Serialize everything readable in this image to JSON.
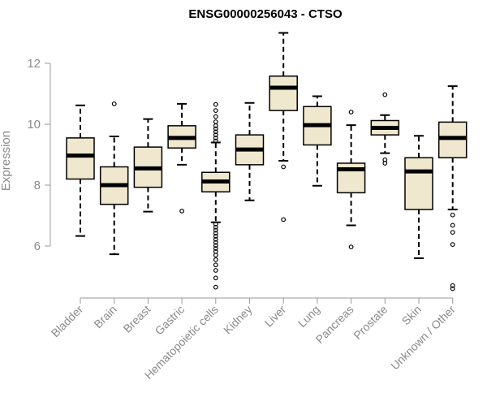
{
  "chart_data": {
    "type": "boxplot",
    "title": "ENSG00000256043 - CTSO",
    "xlabel": "",
    "ylabel": "Expression",
    "ylim": [
      4.5,
      13.2
    ],
    "yticks": [
      6,
      8,
      10,
      12
    ],
    "grid": false,
    "colors": {
      "box_fill": "#efe8cf",
      "box_stroke": "#000000",
      "axis": "#9a9a9a",
      "label": "#8a8a8a"
    },
    "categories": [
      "Bladder",
      "Brain",
      "Breast",
      "Gastric",
      "Hematopoietic cells",
      "Kidney",
      "Liver",
      "Lung",
      "Pancreas",
      "Prostate",
      "Skin",
      "Unknown / Other"
    ],
    "boxes": [
      {
        "q1": 8.2,
        "median": 8.97,
        "q3": 9.55,
        "whisker_low": 6.33,
        "whisker_high": 10.62,
        "outliers": []
      },
      {
        "q1": 7.37,
        "median": 8.0,
        "q3": 8.6,
        "whisker_low": 5.73,
        "whisker_high": 9.6,
        "outliers": [
          10.67
        ]
      },
      {
        "q1": 7.93,
        "median": 8.55,
        "q3": 9.25,
        "whisker_low": 7.13,
        "whisker_high": 10.17,
        "outliers": []
      },
      {
        "q1": 9.22,
        "median": 9.55,
        "q3": 9.95,
        "whisker_low": 8.67,
        "whisker_high": 10.67,
        "outliers": [
          7.15
        ]
      },
      {
        "q1": 7.78,
        "median": 8.12,
        "q3": 8.42,
        "whisker_low": 6.78,
        "whisker_high": 9.4,
        "outliers": [
          10.65,
          10.45,
          10.25,
          10.08,
          9.95,
          9.85,
          9.75,
          9.65,
          9.55,
          9.45,
          6.72,
          6.62,
          6.52,
          6.42,
          6.32,
          6.22,
          6.12,
          6.02,
          5.92,
          5.82,
          5.7,
          5.55,
          5.38,
          5.2,
          4.95,
          4.65
        ]
      },
      {
        "q1": 8.67,
        "median": 9.17,
        "q3": 9.65,
        "whisker_low": 7.5,
        "whisker_high": 10.7,
        "outliers": []
      },
      {
        "q1": 10.45,
        "median": 11.2,
        "q3": 11.58,
        "whisker_low": 8.8,
        "whisker_high": 13.0,
        "outliers": [
          8.6,
          6.87
        ]
      },
      {
        "q1": 9.32,
        "median": 9.97,
        "q3": 10.58,
        "whisker_low": 7.98,
        "whisker_high": 10.92,
        "outliers": []
      },
      {
        "q1": 7.75,
        "median": 8.52,
        "q3": 8.72,
        "whisker_low": 6.68,
        "whisker_high": 9.97,
        "outliers": [
          10.4,
          5.97
        ]
      },
      {
        "q1": 9.65,
        "median": 9.88,
        "q3": 10.12,
        "whisker_low": 9.05,
        "whisker_high": 10.3,
        "outliers": [
          10.97,
          8.83,
          8.72
        ]
      },
      {
        "q1": 7.2,
        "median": 8.45,
        "q3": 8.9,
        "whisker_low": 5.6,
        "whisker_high": 9.62,
        "outliers": []
      },
      {
        "q1": 8.9,
        "median": 9.55,
        "q3": 10.07,
        "whisker_low": 7.2,
        "whisker_high": 11.25,
        "outliers": [
          7.02,
          6.68,
          6.45,
          6.05,
          4.7,
          4.6
        ]
      }
    ]
  }
}
